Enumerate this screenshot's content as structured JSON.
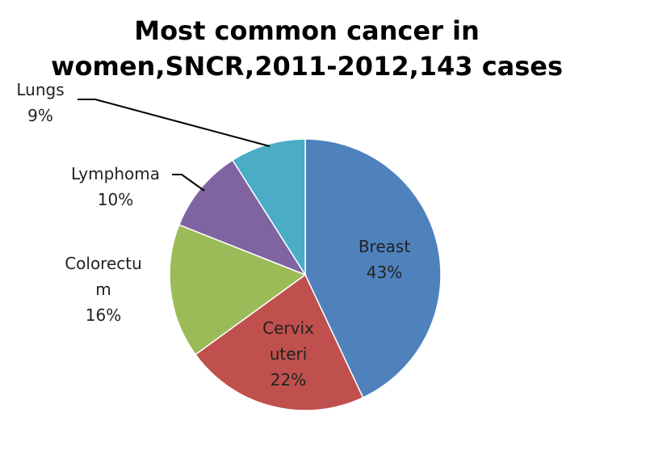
{
  "chart_data": {
    "type": "pie",
    "title_lines": [
      "Most common cancer in",
      "women,SNCR,2011-2012,143 cases"
    ],
    "start_angle_deg": 0,
    "direction": "clockwise",
    "slices": [
      {
        "name": "Breast",
        "value": 43,
        "label_lines": [
          "Breast",
          "43%"
        ],
        "color": "#4f81bd"
      },
      {
        "name": "Cervix uteri",
        "value": 22,
        "label_lines": [
          "Cervix",
          "uteri",
          "22%"
        ],
        "color": "#c0504d"
      },
      {
        "name": "Colorectum",
        "value": 16,
        "label_lines": [
          "Colorectu",
          "m",
          "16%"
        ],
        "color": "#9bbb59"
      },
      {
        "name": "Lymphoma",
        "value": 10,
        "label_lines": [
          "Lymphoma",
          "10%"
        ],
        "color": "#8064a2"
      },
      {
        "name": "Lungs",
        "value": 9,
        "label_lines": [
          "Lungs",
          "9%"
        ],
        "color": "#4bacc6"
      }
    ]
  }
}
